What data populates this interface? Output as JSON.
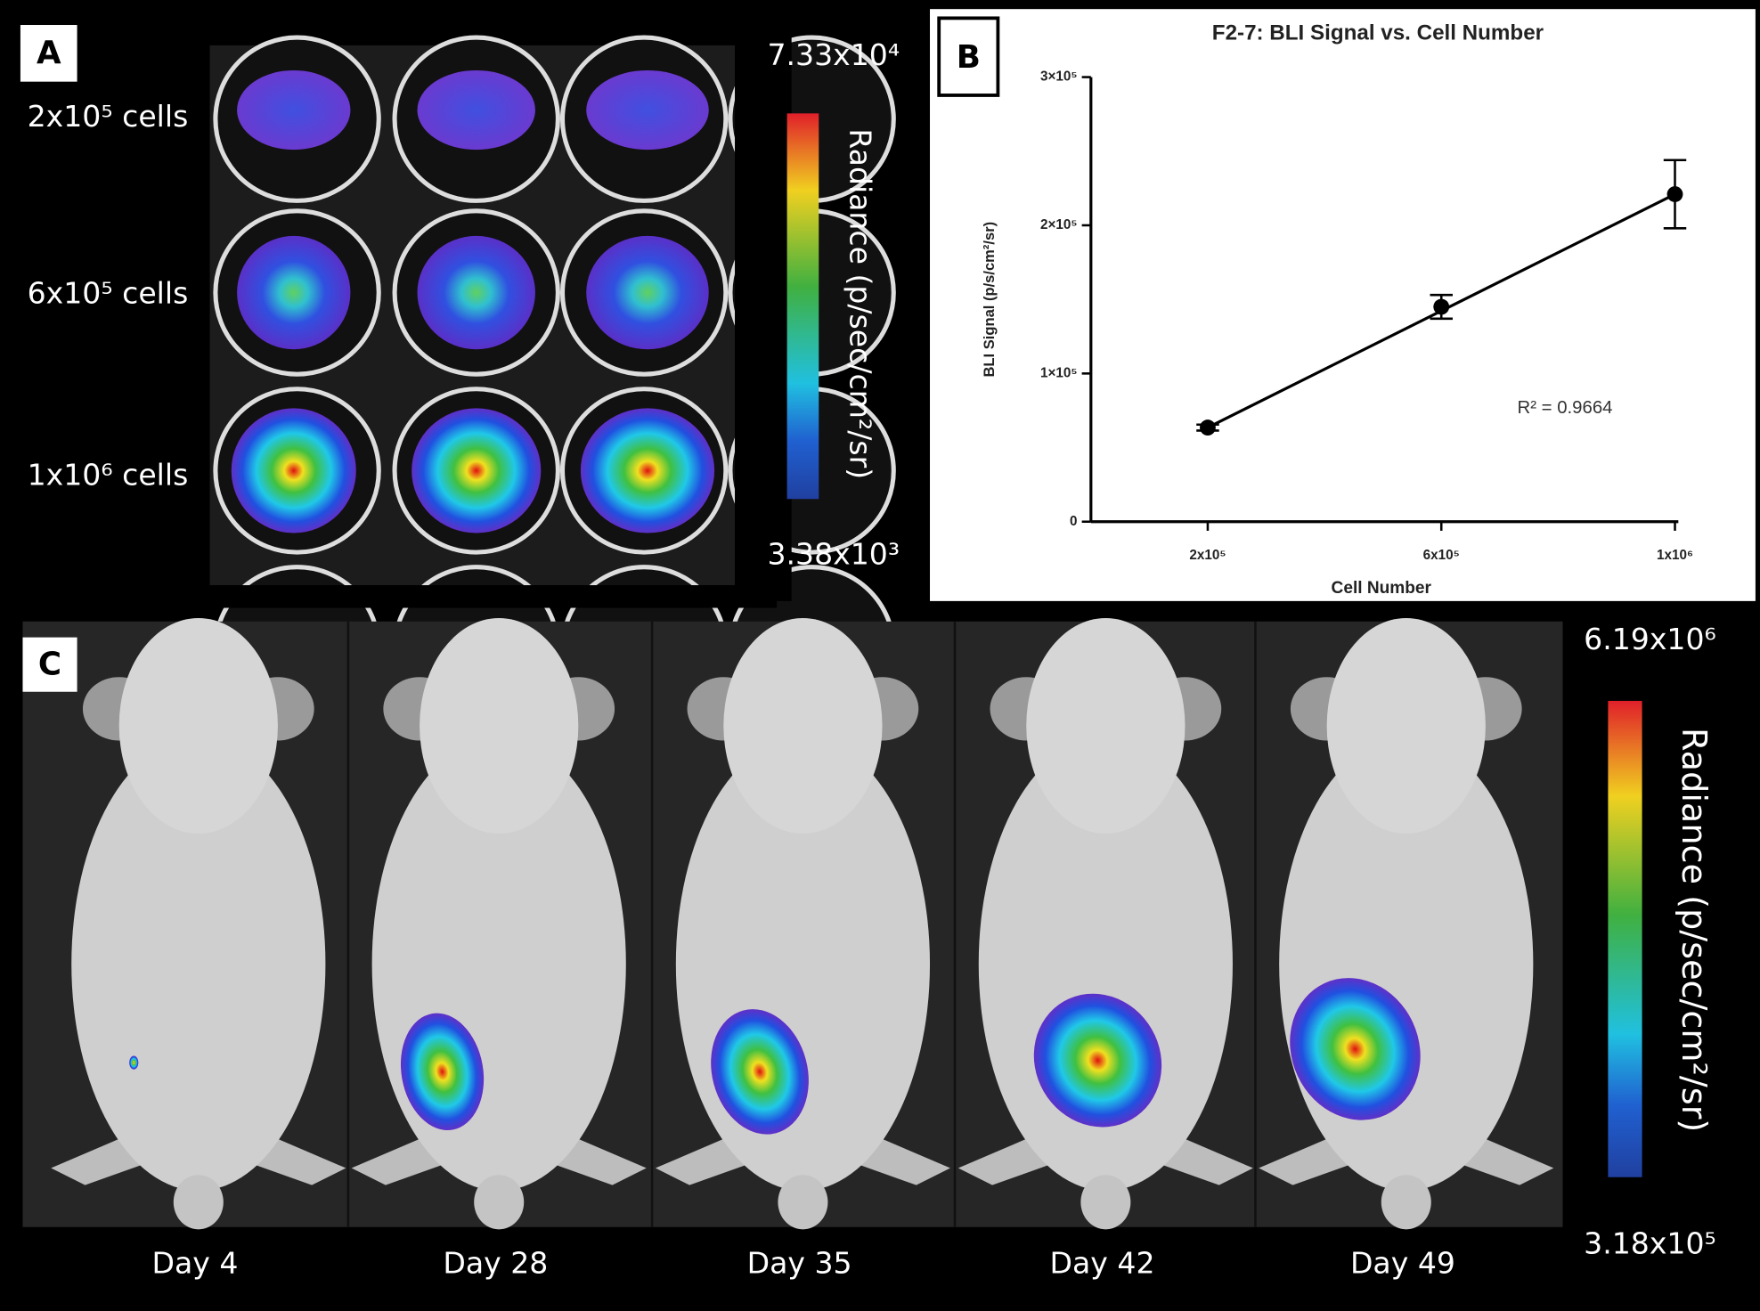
{
  "panel_a": {
    "label": "A",
    "rows": [
      "2x10⁵ cells",
      "6x10⁵ cells",
      "1x10⁶ cells"
    ],
    "colorbar": {
      "max": "7.33x10⁴",
      "min": "3.38x10³",
      "title": "Radiance (p/sec/cm²/sr)"
    }
  },
  "chart_data": {
    "type": "scatter",
    "panel_label": "B",
    "title": "F2-7: BLI Signal vs. Cell Number",
    "x_label": "Cell Number",
    "y_label": "BLI Signal (p/s/cm²/sr)",
    "x": [
      200000,
      600000,
      1000000
    ],
    "series": [
      {
        "color": "#000000",
        "values": [
          63500,
          145000,
          221000
        ],
        "errors": [
          2000,
          8000,
          23000
        ]
      }
    ],
    "fit_line": {
      "x": [
        200000,
        1000000
      ],
      "values": [
        63500,
        221000
      ]
    },
    "annotation": "R² = 0.9664",
    "xlim": [
      0,
      1000000
    ],
    "xticks": [
      {
        "value": 200000,
        "label": "2x10⁵"
      },
      {
        "value": 600000,
        "label": "6x10⁵"
      },
      {
        "value": 1000000,
        "label": "1x10⁶"
      }
    ],
    "ylim": [
      0,
      300000
    ],
    "yticks": [
      0,
      {
        "value": 100000,
        "label": "1×10⁵"
      },
      {
        "value": 200000,
        "label": "2×10⁵"
      },
      {
        "value": 300000,
        "label": "3×10⁵"
      }
    ]
  },
  "panel_c": {
    "label": "C",
    "days": [
      "Day 4",
      "Day 28",
      "Day 35",
      "Day 42",
      "Day 49"
    ],
    "colorbar": {
      "max": "6.19x10⁶",
      "min": "3.18x10⁵",
      "title": "Radiance (p/sec/cm²/sr)"
    }
  }
}
